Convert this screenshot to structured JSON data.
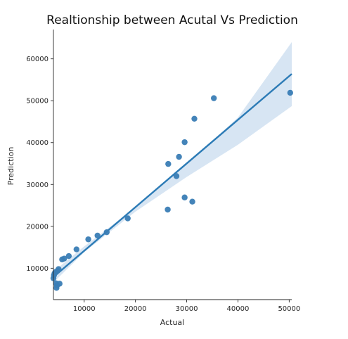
{
  "chart_data": {
    "type": "scatter",
    "title": "Realtionship between Acutal Vs Prediction",
    "xlabel": "Actual",
    "ylabel": "Prediction",
    "xlim": [
      4000,
      50500
    ],
    "ylim": [
      2500,
      67000
    ],
    "xticks": [
      10000,
      20000,
      30000,
      40000,
      50000
    ],
    "yticks": [
      10000,
      20000,
      30000,
      40000,
      50000,
      60000
    ],
    "grid": false,
    "colors": {
      "points": "#3a7db5",
      "line": "#2c7bb6",
      "band": "#c9dcef"
    },
    "points": [
      {
        "x": 4000,
        "y": 7600
      },
      {
        "x": 4100,
        "y": 8300
      },
      {
        "x": 4200,
        "y": 8700
      },
      {
        "x": 4300,
        "y": 8900
      },
      {
        "x": 4400,
        "y": 9100
      },
      {
        "x": 4500,
        "y": 6400
      },
      {
        "x": 4600,
        "y": 5300
      },
      {
        "x": 4700,
        "y": 5900
      },
      {
        "x": 4800,
        "y": 9400
      },
      {
        "x": 5000,
        "y": 9800
      },
      {
        "x": 5200,
        "y": 6300
      },
      {
        "x": 5700,
        "y": 12100
      },
      {
        "x": 6100,
        "y": 12300
      },
      {
        "x": 7000,
        "y": 12900
      },
      {
        "x": 8500,
        "y": 14500
      },
      {
        "x": 10800,
        "y": 16900
      },
      {
        "x": 12600,
        "y": 17800
      },
      {
        "x": 14400,
        "y": 18600
      },
      {
        "x": 18500,
        "y": 21900
      },
      {
        "x": 26300,
        "y": 24000
      },
      {
        "x": 26400,
        "y": 34900
      },
      {
        "x": 28000,
        "y": 32000
      },
      {
        "x": 28500,
        "y": 36600
      },
      {
        "x": 29600,
        "y": 40100
      },
      {
        "x": 29600,
        "y": 26900
      },
      {
        "x": 31100,
        "y": 25900
      },
      {
        "x": 31500,
        "y": 45700
      },
      {
        "x": 35300,
        "y": 50600
      },
      {
        "x": 50200,
        "y": 51900
      }
    ],
    "regression": {
      "x": [
        4000,
        50500
      ],
      "y": [
        7900,
        56400
      ]
    },
    "confidence_band": {
      "x": [
        4000,
        10000,
        20000,
        30000,
        40000,
        50500
      ],
      "lower": [
        6600,
        13800,
        23500,
        31800,
        39500,
        48700
      ],
      "upper": [
        9200,
        15200,
        24500,
        34800,
        46000,
        64000
      ]
    }
  }
}
